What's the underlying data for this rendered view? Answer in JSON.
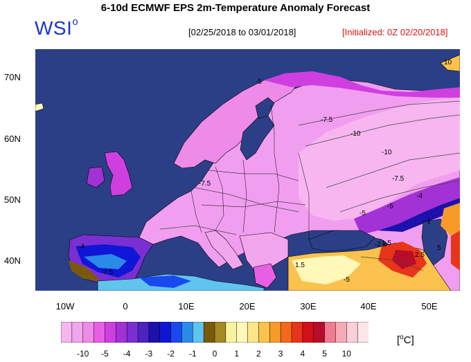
{
  "header": {
    "title": "6-10d ECMWF EPS 2m-Temperature Anomaly Forecast",
    "logo_text": "WSI",
    "logo_mark": "o",
    "date_range": "[02/25/2018 to 03/01/2018]",
    "initialized": "[Initialized: 0Z 02/20/2018]"
  },
  "colors": {
    "ocean": "#2b3f87",
    "land_base": "#f19ef0",
    "accent_blue": "#1a33c7",
    "accent_red": "#dd1111"
  },
  "axes": {
    "y_ticks": [
      "70N",
      "60N",
      "50N",
      "40N"
    ],
    "x_ticks": [
      "10W",
      "0",
      "10E",
      "20E",
      "30E",
      "40E",
      "50E"
    ]
  },
  "contour_labels": [
    "-5",
    "-7.5",
    "-10",
    "-10",
    "-7.5",
    "-5",
    "-7.5",
    "-5",
    "-4",
    "-2.5",
    "-1",
    "1.5",
    "2.5",
    "1.5",
    "-5",
    "5",
    "-4",
    "-7.5",
    "10"
  ],
  "colorbar": {
    "labels": [
      "-10",
      "-5",
      "-4",
      "-3",
      "-2",
      "-1",
      "0",
      "1",
      "2",
      "3",
      "4",
      "5",
      "10"
    ],
    "colors": [
      "#f7b6f0",
      "#f2a6ee",
      "#ee8ae8",
      "#e85fe5",
      "#cf3fe0",
      "#a232d6",
      "#7b2fd2",
      "#4c22c0",
      "#1c11aa",
      "#1016d6",
      "#1a48ef",
      "#2a8ae8",
      "#60c4ef",
      "#7a5a0a",
      "#a48a22",
      "#f8f3a0",
      "#fff8b8",
      "#fde68a",
      "#fbc24e",
      "#f89a2a",
      "#f46a1a",
      "#e8341a",
      "#d3101a",
      "#b80d2a",
      "#f07b92",
      "#f6aab8",
      "#fad0d8",
      "#fde6ea"
    ],
    "unit_text": "[",
    "unit_sup": "o",
    "unit_tail": "C]"
  }
}
